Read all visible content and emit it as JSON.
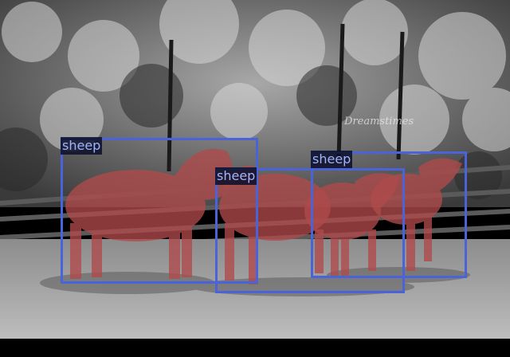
{
  "image": {
    "watermark": "Dreamstimes",
    "colors": {
      "box": "#4a63d8",
      "mask": "#b04a4a",
      "label_text": "#9fb4ff",
      "label_bg": "#0a0e28"
    }
  },
  "detections": [
    {
      "label": "sheep"
    },
    {
      "label": "sheep"
    },
    {
      "label": "sheep"
    }
  ]
}
